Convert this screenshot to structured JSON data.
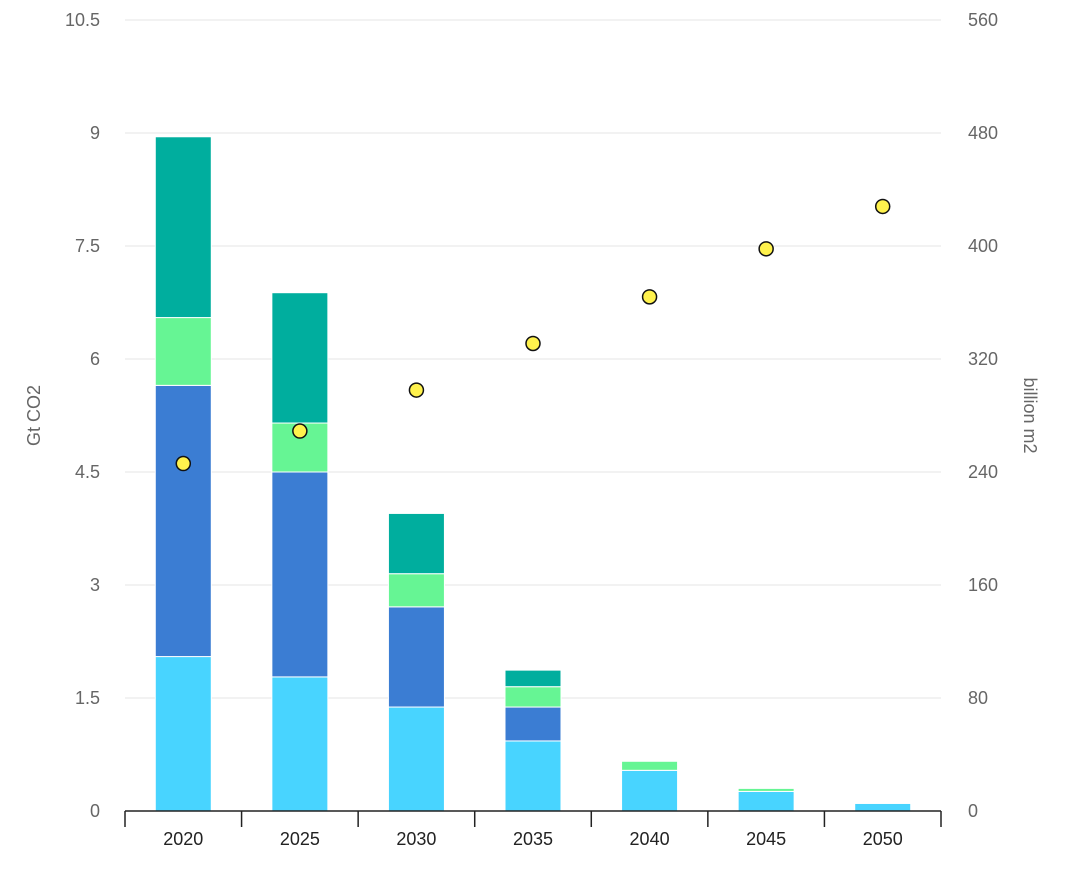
{
  "chart_data": {
    "type": "bar",
    "stacked": true,
    "categories": [
      "2020",
      "2025",
      "2030",
      "2035",
      "2040",
      "2045",
      "2050"
    ],
    "series": [
      {
        "values": [
          2.05,
          1.78,
          1.38,
          0.93,
          0.54,
          0.26,
          0.1
        ],
        "color": "#48d4ff"
      },
      {
        "values": [
          3.6,
          2.72,
          1.33,
          0.45,
          0.0,
          0.0,
          0.0
        ],
        "color": "#3b7dd3"
      },
      {
        "values": [
          0.9,
          0.65,
          0.44,
          0.27,
          0.12,
          0.04,
          0.0
        ],
        "color": "#66f594"
      },
      {
        "values": [
          2.4,
          1.73,
          0.8,
          0.22,
          0.0,
          0.0,
          0.0
        ],
        "color": "#00ae9e"
      }
    ],
    "points": {
      "axis": "right",
      "values": [
        246,
        269,
        298,
        331,
        364,
        398,
        428
      ],
      "color": "#fff24d"
    },
    "y_left": {
      "label": "Gt CO2",
      "range": [
        0,
        10.5
      ],
      "ticks": [
        "0",
        "1.5",
        "3",
        "4.5",
        "6",
        "7.5",
        "9",
        "10.5"
      ]
    },
    "y_right": {
      "label": "billion m2",
      "range": [
        0,
        560
      ],
      "ticks": [
        "0",
        "80",
        "160",
        "240",
        "320",
        "400",
        "480",
        "560"
      ]
    },
    "grid": true,
    "legend": "none"
  }
}
